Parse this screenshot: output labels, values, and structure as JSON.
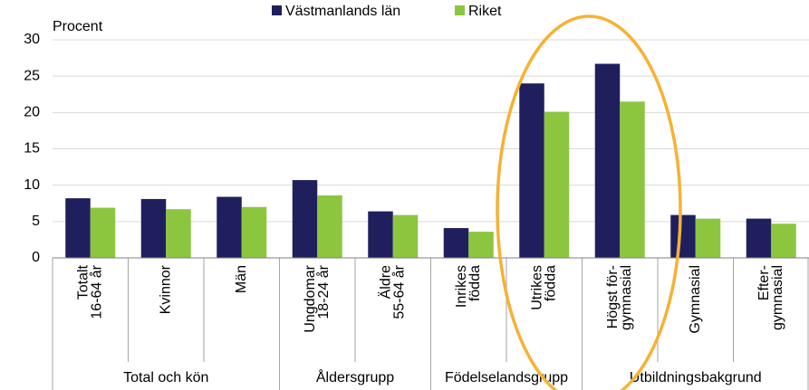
{
  "chart_data": {
    "type": "bar",
    "y_label": "Procent",
    "categories": [
      [
        "Totalt",
        "16-64 år"
      ],
      [
        "Kvinnor"
      ],
      [
        "Män"
      ],
      [
        "Ungdomar",
        "18-24 år"
      ],
      [
        "Äldre",
        "55-64 år"
      ],
      [
        "Inrikes",
        "födda"
      ],
      [
        "Utrikes",
        "födda"
      ],
      [
        "Högst för-",
        "gymnasial"
      ],
      [
        "Gymnasial"
      ],
      [
        "Efter-",
        "gymnasial"
      ]
    ],
    "groups": [
      {
        "name": "Total och kön",
        "count": 3
      },
      {
        "name": "Åldersgrupp",
        "count": 2
      },
      {
        "name": "Födelselandsgrupp",
        "count": 2
      },
      {
        "name": "Utbildningsbakgrund",
        "count": 3
      }
    ],
    "series": [
      {
        "name": "Västmanlands län",
        "color": "#1f1f5e",
        "values": [
          8.2,
          8.1,
          8.4,
          10.7,
          6.4,
          4.1,
          24.0,
          26.7,
          5.9,
          5.4
        ]
      },
      {
        "name": "Riket",
        "color": "#8cc63f",
        "values": [
          6.9,
          6.7,
          7.0,
          8.6,
          5.9,
          3.6,
          20.1,
          21.5,
          5.4,
          4.7
        ]
      }
    ],
    "ylim": [
      0,
      30
    ],
    "yticks": [
      0,
      5,
      10,
      15,
      20,
      25,
      30
    ],
    "grid": true
  }
}
